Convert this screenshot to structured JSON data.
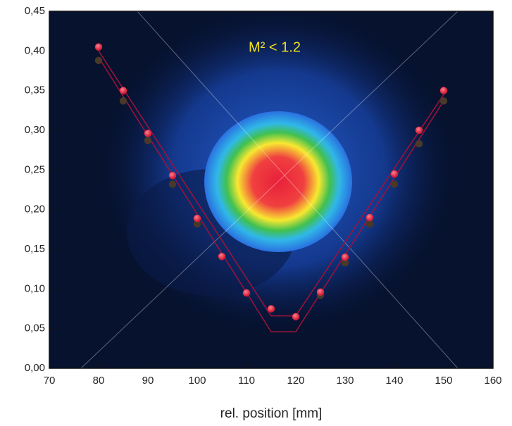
{
  "chart_data": {
    "type": "scatter",
    "annotation": "M² < 1.2",
    "x_label": "rel. position [mm]",
    "xlim": [
      70,
      160
    ],
    "xticks": [
      70,
      80,
      90,
      100,
      110,
      120,
      130,
      140,
      150,
      160
    ],
    "ylim": [
      0,
      0.45
    ],
    "yticks": [
      {
        "value": 0,
        "label": "0,00"
      },
      {
        "value": 0.05,
        "label": "0,05"
      },
      {
        "value": 0.1,
        "label": "0,10"
      },
      {
        "value": 0.15,
        "label": "0,15"
      },
      {
        "value": 0.2,
        "label": "0,20"
      },
      {
        "value": 0.25,
        "label": "0,25"
      },
      {
        "value": 0.3,
        "label": "0,30"
      },
      {
        "value": 0.35,
        "label": "0,35"
      },
      {
        "value": 0.4,
        "label": "0,40"
      },
      {
        "value": 0.45,
        "label": "0,45"
      }
    ],
    "series": [
      {
        "type": "line",
        "color": "#a0123a",
        "x": [
          80,
          115,
          120,
          150
        ],
        "values": [
          0.4,
          0.066,
          0.066,
          0.345
        ]
      },
      {
        "type": "line",
        "color": "#a0123a",
        "x": [
          80,
          115,
          120,
          150
        ],
        "values": [
          0.392,
          0.046,
          0.046,
          0.337
        ]
      },
      {
        "type": "scatter",
        "color": "#4a3828",
        "x": [
          80,
          85,
          90,
          95,
          100,
          125,
          130,
          135,
          140,
          145,
          150
        ],
        "values": [
          0.388,
          0.337,
          0.287,
          0.232,
          0.182,
          0.092,
          0.133,
          0.182,
          0.232,
          0.283,
          0.337
        ]
      },
      {
        "type": "scatter",
        "color": "#ee2a44",
        "x": [
          80,
          85,
          90,
          95,
          100,
          105,
          110,
          115,
          120,
          125,
          130,
          135,
          140,
          145,
          150
        ],
        "values": [
          0.405,
          0.35,
          0.296,
          0.243,
          0.189,
          0.141,
          0.095,
          0.075,
          0.065,
          0.096,
          0.14,
          0.19,
          0.245,
          0.3,
          0.35
        ]
      }
    ]
  }
}
